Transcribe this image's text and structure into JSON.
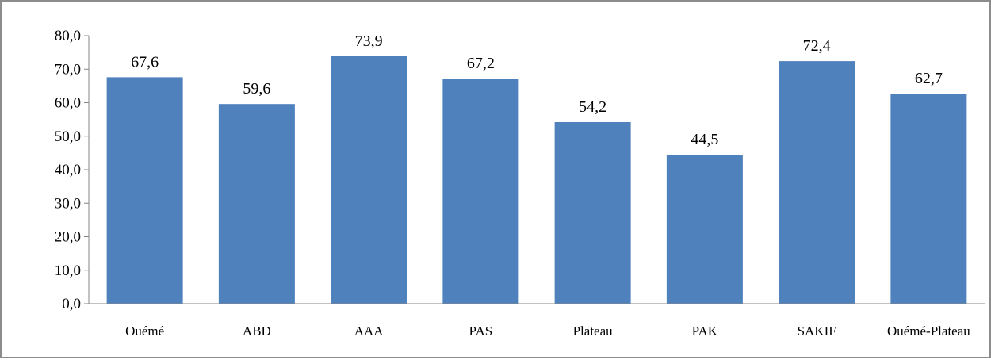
{
  "chart_data": {
    "type": "bar",
    "title": "",
    "xlabel": "",
    "ylabel": "",
    "categories": [
      "Ouémé",
      "ABD",
      "AAA",
      "PAS",
      "Plateau",
      "PAK",
      "SAKIF",
      "Ouémé-Plateau"
    ],
    "values": [
      67.6,
      59.6,
      73.9,
      67.2,
      54.2,
      44.5,
      72.4,
      62.7
    ],
    "data_labels": [
      "67,6",
      "59,6",
      "73,9",
      "67,2",
      "54,2",
      "44,5",
      "72,4",
      "62,7"
    ],
    "ylim": [
      0,
      80
    ],
    "yticks": [
      0,
      10,
      20,
      30,
      40,
      50,
      60,
      70,
      80
    ],
    "ytick_labels": [
      "0,0",
      "10,0",
      "20,0",
      "30,0",
      "40,0",
      "50,0",
      "60,0",
      "70,0",
      "80,0"
    ],
    "grid": false,
    "legend": "none",
    "bar_color": "#4f81bd",
    "axis_color": "#868686"
  }
}
